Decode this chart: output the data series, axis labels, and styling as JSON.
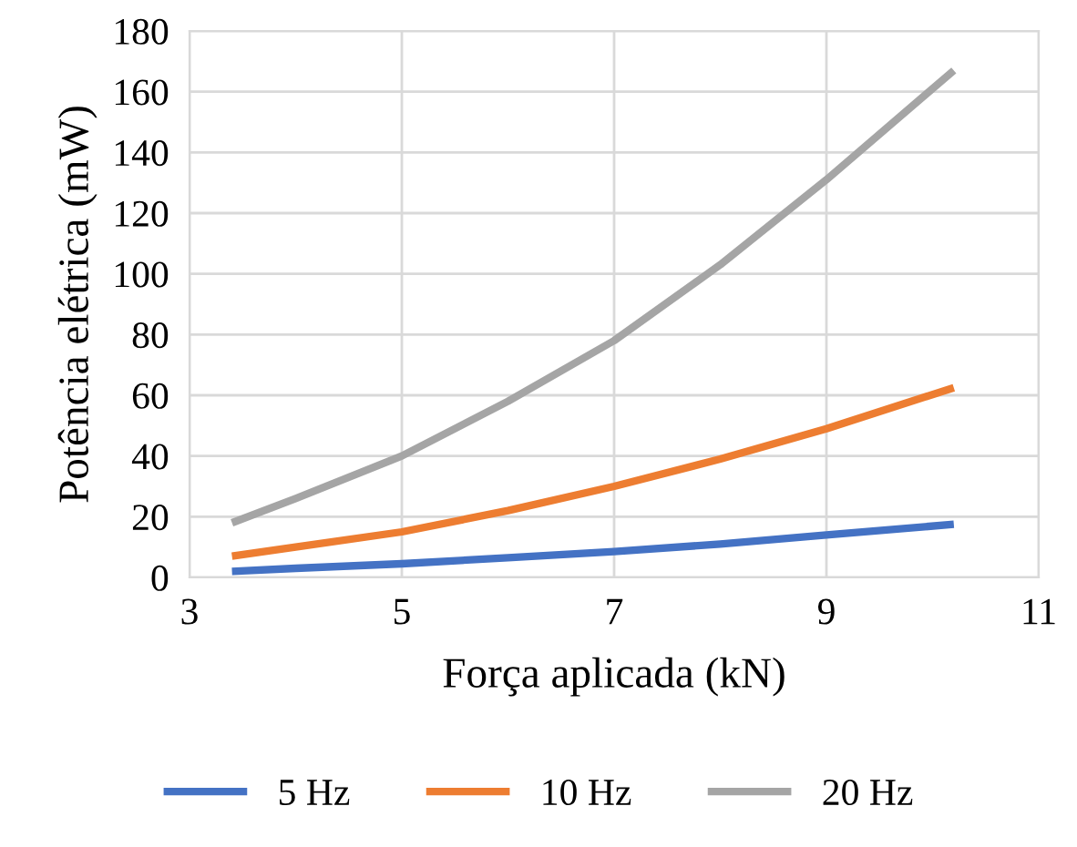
{
  "chart_data": {
    "type": "line",
    "xlabel": "Força aplicada (kN)",
    "ylabel": "Potência elétrica (mW)",
    "x": [
      3.4,
      4,
      5,
      6,
      7,
      8,
      9,
      10.2
    ],
    "series": [
      {
        "name": "5 Hz",
        "color": "#4472c4",
        "values": [
          2,
          3,
          4.5,
          6.5,
          8.5,
          11,
          14,
          17.5
        ]
      },
      {
        "name": "10 Hz",
        "color": "#ed7d31",
        "values": [
          7,
          10,
          15,
          22,
          30,
          39,
          49,
          62.5
        ]
      },
      {
        "name": "20 Hz",
        "color": "#a5a5a5",
        "values": [
          18,
          26,
          40,
          58,
          78,
          103,
          131,
          167
        ]
      }
    ],
    "xlim": [
      3,
      11
    ],
    "xticks": [
      3,
      5,
      7,
      9,
      11
    ],
    "ylim": [
      0,
      180
    ],
    "yticks": [
      0,
      20,
      40,
      60,
      80,
      100,
      120,
      140,
      160,
      180
    ],
    "grid": true,
    "legend": "bottom",
    "marker": "none",
    "line_style": "solid"
  }
}
